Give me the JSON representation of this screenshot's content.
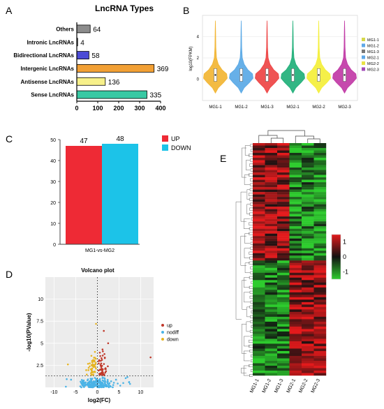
{
  "panel_letters": [
    "A",
    "B",
    "C",
    "D",
    "E"
  ],
  "colors": {
    "others": "#8c8c8c",
    "intronic": "#5a5a5a",
    "bidirectional": "#4b4bd6",
    "intergenic": "#f2a035",
    "antisense": "#f7f08a",
    "sense": "#38c9a4",
    "up": "#ee2a35",
    "down": "#1cc3e8",
    "volcano_up": "#c0392b",
    "volcano_nodiff": "#4ab3e6",
    "volcano_down": "#e6b422",
    "heat_high": "#e31a1c",
    "heat_mid": "#111111",
    "heat_low": "#2ecc2e"
  },
  "chart_data": [
    {
      "id": "A",
      "type": "bar",
      "orientation": "horizontal",
      "title": "LncRNA Types",
      "categories": [
        "Others",
        "Intronic LncRNAs",
        "Bidirectional LncRNAs",
        "Intergenic LncRNAs",
        "Antisense LncRNAs",
        "Sense LncRNAs"
      ],
      "values": [
        64,
        4,
        58,
        369,
        136,
        335
      ],
      "xlim": [
        0,
        400
      ],
      "xticks": [
        "0",
        "100",
        "200",
        "300",
        "400"
      ]
    },
    {
      "id": "B",
      "type": "violin",
      "ylabel": "log10(FPKM)",
      "ylim": [
        -2,
        6
      ],
      "yticks": [
        "0",
        "2",
        "4"
      ],
      "categories": [
        "MG1-1",
        "MG1-2",
        "MG1-3",
        "MG2-1",
        "MG2-2",
        "MG2-3"
      ],
      "medians": [
        0.4,
        0.4,
        0.4,
        0.4,
        0.4,
        0.4
      ],
      "series_colors": [
        "#f2b533",
        "#5aa9e6",
        "#ee4444",
        "#21b07a",
        "#f4ef3a",
        "#c13aa6"
      ],
      "legend": [
        "MG1-1",
        "MG1-2",
        "MG1-3",
        "MG2-1",
        "MG2-2",
        "MG2-3"
      ],
      "legend_colors": [
        "#d6d84a",
        "#5fa8e8",
        "#777777",
        "#5fa8e8",
        "#e9e246",
        "#a24bb8"
      ],
      "legend_position": "right"
    },
    {
      "id": "C",
      "type": "bar",
      "categories": [
        "MG1-vs-MG2"
      ],
      "series": [
        {
          "name": "UP",
          "values": [
            47
          ]
        },
        {
          "name": "DOWN",
          "values": [
            48
          ]
        }
      ],
      "ylim": [
        0,
        50
      ],
      "yticks": [
        "0",
        "10",
        "20",
        "30",
        "40",
        "50"
      ],
      "legend_position": "top-right"
    },
    {
      "id": "D",
      "type": "scatter",
      "title": "Volcano plot",
      "xlabel": "log2(FC)",
      "ylabel": "-log10(PValue)",
      "xlim": [
        -12,
        13
      ],
      "ylim": [
        0,
        12.5
      ],
      "xticks": [
        "-10",
        "-5",
        "0",
        "5",
        "10"
      ],
      "yticks": [
        "2.5",
        "5",
        "7.5",
        "10"
      ],
      "threshold_p": 1.3,
      "legend": [
        "up",
        "nodiff",
        "down"
      ],
      "legend_position": "right"
    },
    {
      "id": "E",
      "type": "heatmap",
      "columns": [
        "MG1-1",
        "MG1-2",
        "MG1-3",
        "MG2-1",
        "MG2-2",
        "MG2-3"
      ],
      "rows": 95,
      "colorbar_ticks": [
        "1",
        "0",
        "-1"
      ],
      "range": [
        -1.5,
        1.5
      ]
    }
  ]
}
